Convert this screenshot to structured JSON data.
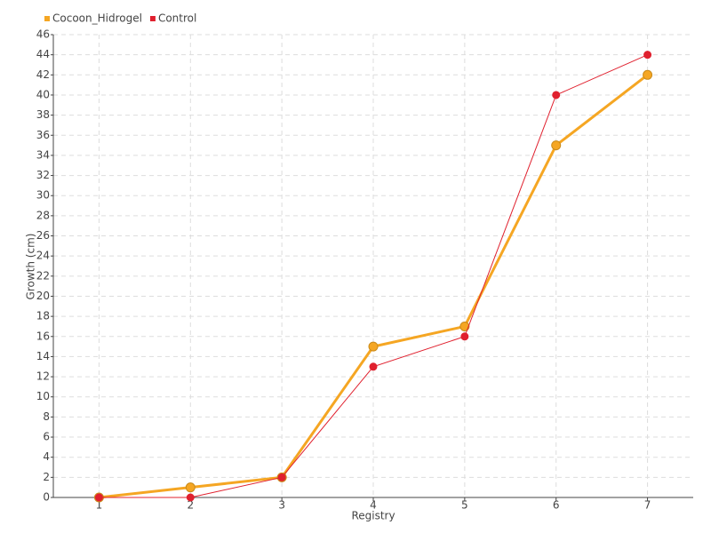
{
  "chart_data": {
    "type": "line",
    "x_label": "Registry",
    "y_label": "Growth (cm)",
    "categories": [
      "1",
      "2",
      "3",
      "4",
      "5",
      "6",
      "7"
    ],
    "series": [
      {
        "name": "Cocoon_Hidrogel",
        "color": "#f5a623",
        "values": [
          0,
          1,
          2,
          15,
          17,
          35,
          42
        ]
      },
      {
        "name": "Control",
        "color": "#e0202e",
        "values": [
          0,
          0,
          2,
          13,
          16,
          40,
          44
        ]
      }
    ],
    "ylim": [
      0,
      46
    ],
    "yticks": [
      0,
      2,
      4,
      6,
      8,
      10,
      12,
      14,
      16,
      18,
      20,
      22,
      24,
      26,
      28,
      30,
      32,
      34,
      36,
      38,
      40,
      42,
      44,
      46
    ],
    "grid": true,
    "legend": "top-left"
  }
}
